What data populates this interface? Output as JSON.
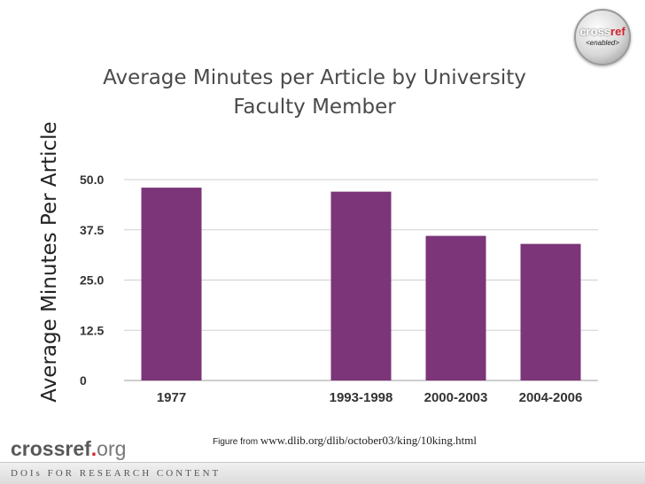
{
  "title_line1": "Average Minutes per Article by University",
  "title_line2": "Faculty Member",
  "brand": {
    "cr": "crossref",
    "dot": ".",
    "org": "org",
    "tagline": "DOIs FOR RESEARCH CONTENT"
  },
  "badge": {
    "cross": "cross",
    "ref": "ref",
    "enabled": "<enabled>"
  },
  "caption": {
    "prefix": "Figure from",
    "url": "www.dlib.org/dlib/october03/king/10king.html"
  },
  "colors": {
    "bar": "#7b3578",
    "grid": "#d0d0d0"
  },
  "chart_data": {
    "type": "bar",
    "title": "Average Minutes per Article by University Faculty Member",
    "xlabel": "",
    "ylabel": "Average Minutes Per Article",
    "categories": [
      "1977",
      "",
      "1993-1998",
      "2000-2003",
      "2004-2006"
    ],
    "values": [
      48,
      null,
      47,
      36,
      34
    ],
    "ylim": [
      0,
      50
    ],
    "yticks": [
      "0",
      "12.5",
      "25.0",
      "37.5",
      "50.0"
    ],
    "ytick_values": [
      0,
      12.5,
      25,
      37.5,
      50
    ],
    "grid": true,
    "legend": "none"
  }
}
